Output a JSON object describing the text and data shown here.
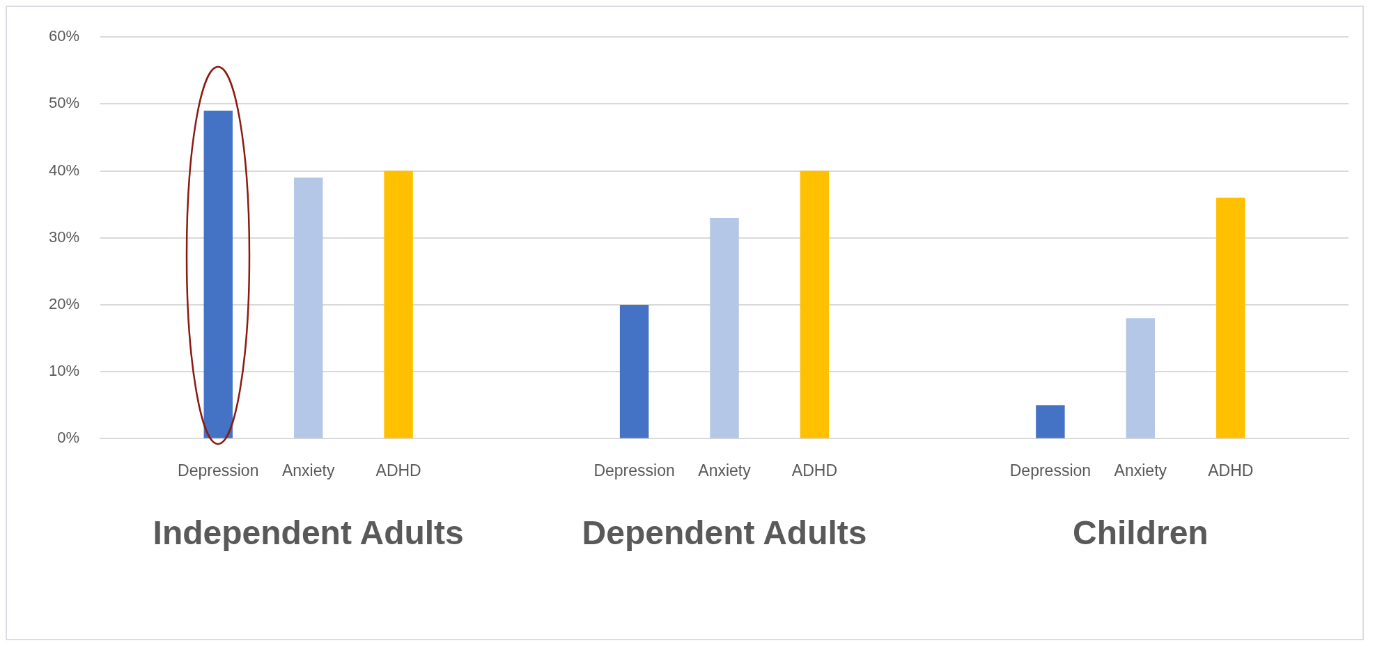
{
  "chart_data": {
    "type": "bar",
    "categories": [
      "Independent Adults",
      "Dependent Adults",
      "Children"
    ],
    "series": [
      {
        "name": "Depression",
        "color": "#4472c4",
        "values": [
          49,
          20,
          5
        ]
      },
      {
        "name": "Anxiety",
        "color": "#b4c7e7",
        "values": [
          39,
          33,
          18
        ]
      },
      {
        "name": "ADHD",
        "color": "#ffc000",
        "values": [
          40,
          40,
          36
        ]
      }
    ],
    "ylim": [
      0,
      60
    ],
    "yticks": [
      {
        "value": 0,
        "label": "0%"
      },
      {
        "value": 10,
        "label": "10%"
      },
      {
        "value": 20,
        "label": "20%"
      },
      {
        "value": 30,
        "label": "30%"
      },
      {
        "value": 40,
        "label": "40%"
      },
      {
        "value": 50,
        "label": "50%"
      },
      {
        "value": 60,
        "label": "60%"
      }
    ],
    "grid": "y",
    "legend": false
  }
}
